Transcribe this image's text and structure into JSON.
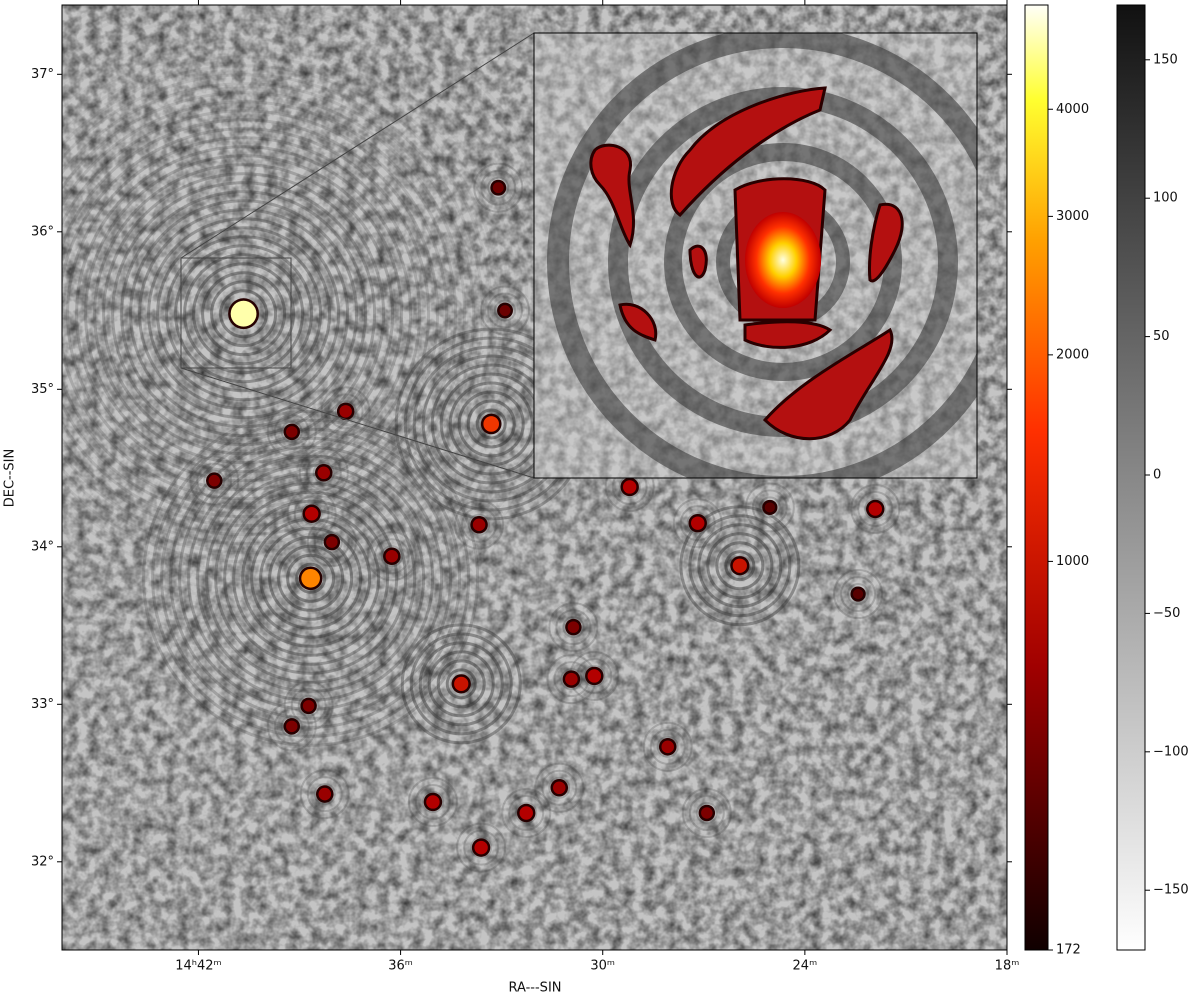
{
  "chart_data": {
    "type": "image",
    "xlabel": "RA---SIN",
    "ylabel": "DEC--SIN",
    "xlim": [
      46.05,
      18
    ],
    "ylim": [
      31.44,
      37.44
    ],
    "xticks": [
      {
        "value": 42,
        "label": "14ʰ42ᵐ"
      },
      {
        "value": 36,
        "label": "36ᵐ"
      },
      {
        "value": 30,
        "label": "30ᵐ"
      },
      {
        "value": 24,
        "label": "24ᵐ"
      },
      {
        "value": 18,
        "label": "18ᵐ"
      }
    ],
    "yticks": [
      {
        "value": 32,
        "label": "32°"
      },
      {
        "value": 33,
        "label": "33°"
      },
      {
        "value": 34,
        "label": "34°"
      },
      {
        "value": 35,
        "label": "35°"
      },
      {
        "value": 36,
        "label": "36°"
      },
      {
        "value": 37,
        "label": "37°"
      }
    ],
    "sources": {
      "x": [
        40.66,
        38.67,
        33.31,
        37.63,
        38.28,
        38.64,
        38.04,
        36.26,
        33.67,
        29.2,
        27.18,
        25.93,
        21.91,
        34.2,
        30.25,
        30.93,
        30.87,
        28.07,
        26.91,
        31.29,
        32.27,
        33.61,
        35.04,
        38.25,
        39.23,
        38.73,
        41.53,
        39.23,
        33.1,
        32.9,
        25.04,
        22.42
      ],
      "y": [
        35.48,
        33.8,
        34.78,
        34.86,
        34.47,
        34.21,
        34.03,
        33.94,
        34.14,
        34.38,
        34.15,
        33.88,
        34.24,
        33.13,
        33.18,
        33.16,
        33.49,
        32.73,
        32.31,
        32.47,
        32.31,
        32.09,
        32.38,
        32.43,
        32.86,
        32.99,
        34.42,
        34.73,
        36.28,
        35.5,
        34.25,
        33.7
      ],
      "values": [
        4000,
        1500,
        900,
        500,
        500,
        600,
        400,
        500,
        500,
        600,
        600,
        700,
        600,
        700,
        600,
        500,
        400,
        500,
        400,
        500,
        600,
        600,
        600,
        500,
        400,
        400,
        400,
        400,
        350,
        350,
        300,
        300
      ]
    },
    "colorbars": [
      {
        "cmap": "hot",
        "scale": "power",
        "exponent": 0.25,
        "clim": [
          172,
          5195
        ],
        "ticks": [
          172,
          1000,
          2000,
          3000,
          4000
        ]
      },
      {
        "cmap": "gray_r",
        "scale": "linear",
        "clim": [
          -171.6,
          169.8
        ],
        "ticks": [
          {
            "value": -150,
            "label": "−150"
          },
          {
            "value": -100,
            "label": "−100"
          },
          {
            "value": -50,
            "label": "−50"
          },
          0,
          50,
          100,
          150
        ]
      }
    ]
  }
}
